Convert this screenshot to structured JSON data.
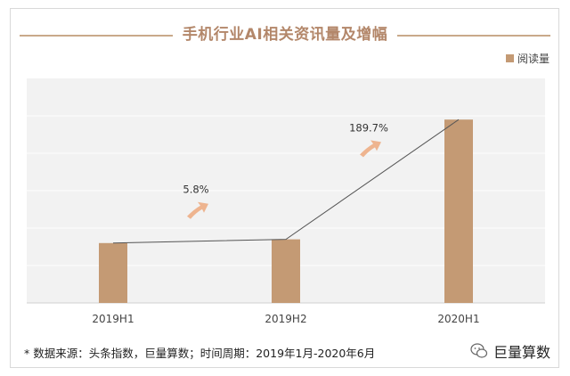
{
  "title": "手机行业AI相关资讯量及增幅",
  "legend": {
    "label": "阅读量",
    "color": "#c49a74"
  },
  "footer": {
    "note": "* 数据来源：头条指数，巨量算数；时间周期：2019年1月-2020年6月"
  },
  "brand": {
    "name": "巨量算数"
  },
  "colors": {
    "bar": "#c49a74",
    "title": "#b3876a",
    "arrow": "#eeb48f",
    "plot_bg": "#f2f2f2",
    "grid": "#ffffff",
    "line": "#555555"
  },
  "chart_data": {
    "type": "bar",
    "categories": [
      "2019H1",
      "2019H2",
      "2020H1"
    ],
    "series": [
      {
        "name": "阅读量",
        "values": [
          0.8,
          0.85,
          2.45
        ]
      }
    ],
    "growth_labels": [
      "5.8%",
      "189.7%"
    ],
    "ylim": [
      0,
      3.0
    ],
    "grid": true,
    "legend_position": "top-right",
    "trend_line": true
  }
}
